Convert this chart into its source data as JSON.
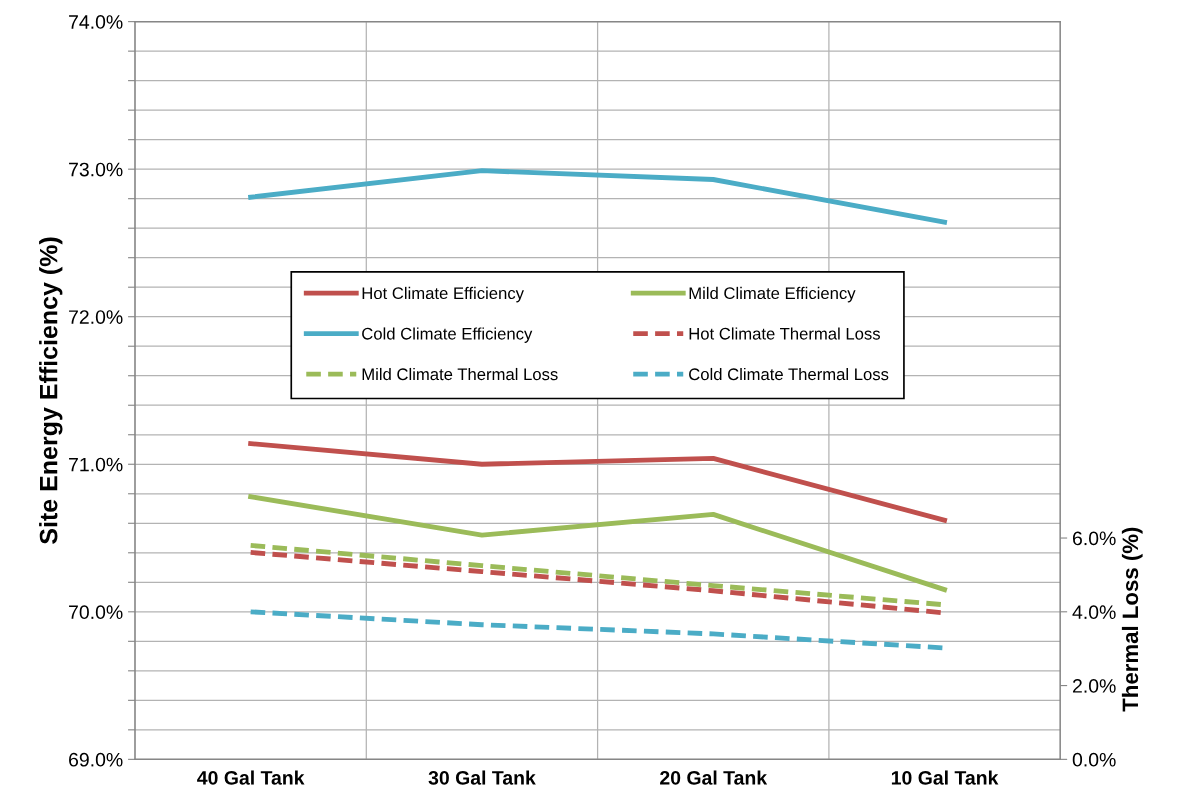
{
  "chart_data": {
    "type": "line",
    "ylabel": "Site Energy Efficiency (%)",
    "y2label": "Thermal Loss (%)",
    "categories": [
      "40 Gal Tank",
      "30 Gal Tank",
      "20 Gal Tank",
      "10 Gal Tank"
    ],
    "series": [
      {
        "name": "Hot Climate Efficiency",
        "color": "#c0504d",
        "values": [
          71.14,
          71.0,
          71.04,
          70.62
        ],
        "line_style": "solid"
      },
      {
        "name": "Mild Climate Efficiency",
        "color": "#9bbb59",
        "values": [
          70.78,
          70.52,
          70.66,
          70.15
        ],
        "line_style": "solid"
      },
      {
        "name": "Cold Climate Efficiency",
        "color": "#4bacc6",
        "values": [
          72.81,
          72.99,
          72.93,
          72.64
        ],
        "line_style": "solid"
      },
      {
        "name": "Hot Climate Thermal Loss",
        "color": "#c0504d",
        "values": [
          5.61,
          5.09,
          4.57,
          3.97
        ],
        "line_style": "dashed",
        "axis": "y2"
      },
      {
        "name": "Mild Climate Thermal Loss",
        "color": "#9bbb59",
        "values": [
          5.8,
          5.25,
          4.71,
          4.19
        ],
        "line_style": "dashed",
        "axis": "y2"
      },
      {
        "name": "Cold Climate Thermal Loss",
        "color": "#4bacc6",
        "values": [
          4.0,
          3.65,
          3.4,
          3.02
        ],
        "line_style": "dashed",
        "axis": "y2"
      }
    ],
    "ylim": [
      69,
      74
    ],
    "yticks": [
      {
        "value": 69,
        "label": "69.0%"
      },
      {
        "value": 69.2,
        "label": null
      },
      {
        "value": 69.4,
        "label": null
      },
      {
        "value": 69.6,
        "label": null
      },
      {
        "value": 69.8,
        "label": null
      },
      {
        "value": 70,
        "label": "70.0%"
      },
      {
        "value": 70.2,
        "label": null
      },
      {
        "value": 70.4,
        "label": null
      },
      {
        "value": 70.6,
        "label": null
      },
      {
        "value": 70.8,
        "label": null
      },
      {
        "value": 71,
        "label": "71.0%"
      },
      {
        "value": 71.2,
        "label": null
      },
      {
        "value": 71.4,
        "label": null
      },
      {
        "value": 71.6,
        "label": null
      },
      {
        "value": 71.8,
        "label": null
      },
      {
        "value": 72,
        "label": "72.0%"
      },
      {
        "value": 72.2,
        "label": null
      },
      {
        "value": 72.4,
        "label": null
      },
      {
        "value": 72.6,
        "label": null
      },
      {
        "value": 72.8,
        "label": null
      },
      {
        "value": 73,
        "label": "73.0%"
      },
      {
        "value": 73.2,
        "label": null
      },
      {
        "value": 73.4,
        "label": null
      },
      {
        "value": 73.6,
        "label": null
      },
      {
        "value": 73.8,
        "label": null
      },
      {
        "value": 74,
        "label": "74.0%"
      }
    ],
    "y2lim": [
      0,
      20
    ],
    "y2ticks": [
      {
        "value": 0,
        "label": "0.0%"
      },
      {
        "value": 2,
        "label": "2.0%"
      },
      {
        "value": 4,
        "label": "4.0%"
      },
      {
        "value": 6,
        "label": "6.0%"
      }
    ],
    "grid": true,
    "legend": "center",
    "marker": "none"
  }
}
